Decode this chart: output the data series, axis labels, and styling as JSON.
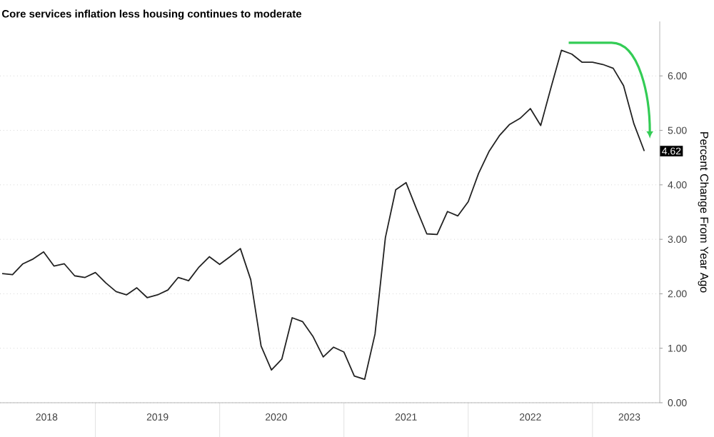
{
  "chart_data": {
    "type": "line",
    "title": "Core services inflation less housing continues to moderate",
    "ylabel": "Percent Change From Year Ago",
    "x": [
      "2018-04",
      "2018-05",
      "2018-06",
      "2018-07",
      "2018-08",
      "2018-09",
      "2018-10",
      "2018-11",
      "2018-12",
      "2019-01",
      "2019-02",
      "2019-03",
      "2019-04",
      "2019-05",
      "2019-06",
      "2019-07",
      "2019-08",
      "2019-09",
      "2019-10",
      "2019-11",
      "2019-12",
      "2020-01",
      "2020-02",
      "2020-03",
      "2020-04",
      "2020-05",
      "2020-06",
      "2020-07",
      "2020-08",
      "2020-09",
      "2020-10",
      "2020-11",
      "2020-12",
      "2021-01",
      "2021-02",
      "2021-03",
      "2021-04",
      "2021-05",
      "2021-06",
      "2021-07",
      "2021-08",
      "2021-09",
      "2021-10",
      "2021-11",
      "2021-12",
      "2022-01",
      "2022-02",
      "2022-03",
      "2022-04",
      "2022-05",
      "2022-06",
      "2022-07",
      "2022-08",
      "2022-09",
      "2022-10",
      "2022-11",
      "2022-12",
      "2023-01",
      "2023-02",
      "2023-03",
      "2023-04",
      "2023-05",
      "2023-06"
    ],
    "series": [
      {
        "color": "#222222",
        "values": [
          2.37,
          2.35,
          2.55,
          2.64,
          2.77,
          2.51,
          2.55,
          2.33,
          2.3,
          2.39,
          2.2,
          2.04,
          1.98,
          2.11,
          1.93,
          1.98,
          2.07,
          2.3,
          2.24,
          2.49,
          2.68,
          2.54,
          2.68,
          2.83,
          2.26,
          1.04,
          0.6,
          0.8,
          1.56,
          1.49,
          1.22,
          0.84,
          1.02,
          0.93,
          0.49,
          0.43,
          1.26,
          3.03,
          3.91,
          4.04,
          3.56,
          3.1,
          3.09,
          3.51,
          3.43,
          3.69,
          4.21,
          4.61,
          4.9,
          5.11,
          5.22,
          5.4,
          5.09,
          5.79,
          6.47,
          6.4,
          6.25,
          6.25,
          6.21,
          6.14,
          5.82,
          5.12,
          4.62
        ],
        "value_labels": [
          null,
          null,
          null,
          null,
          null,
          null,
          null,
          null,
          null,
          null,
          null,
          null,
          null,
          null,
          null,
          null,
          null,
          null,
          null,
          null,
          null,
          null,
          null,
          null,
          null,
          null,
          null,
          null,
          null,
          null,
          null,
          null,
          null,
          null,
          null,
          null,
          null,
          null,
          null,
          null,
          null,
          null,
          null,
          null,
          null,
          null,
          null,
          null,
          null,
          null,
          null,
          null,
          null,
          null,
          null,
          null,
          null,
          null,
          null,
          null,
          null,
          null,
          "4.62"
        ]
      }
    ],
    "xlim": [
      "2018-03-25",
      "2023-07-16"
    ],
    "xticks": [
      {
        "value": "2018-08-10",
        "label": "2018"
      },
      {
        "value": "2019-07-01",
        "label": "2019"
      },
      {
        "value": "2020-06-15",
        "label": "2020"
      },
      {
        "value": "2021-07-01",
        "label": "2021"
      },
      {
        "value": "2022-07-01",
        "label": "2022"
      },
      {
        "value": "2023-04-18",
        "label": "2023"
      }
    ],
    "ylim": [
      0,
      7
    ],
    "yticks": [
      {
        "value": 0,
        "label": "0.00"
      },
      {
        "value": 1,
        "label": "1.00"
      },
      {
        "value": 2,
        "label": "2.00"
      },
      {
        "value": 3,
        "label": "3.00"
      },
      {
        "value": 4,
        "label": "4.00"
      },
      {
        "value": 5,
        "label": "5.00"
      },
      {
        "value": 6,
        "label": "6.00"
      }
    ],
    "grid": "y",
    "tick_labels": "xy",
    "marker": "none",
    "line_style": "solid"
  }
}
